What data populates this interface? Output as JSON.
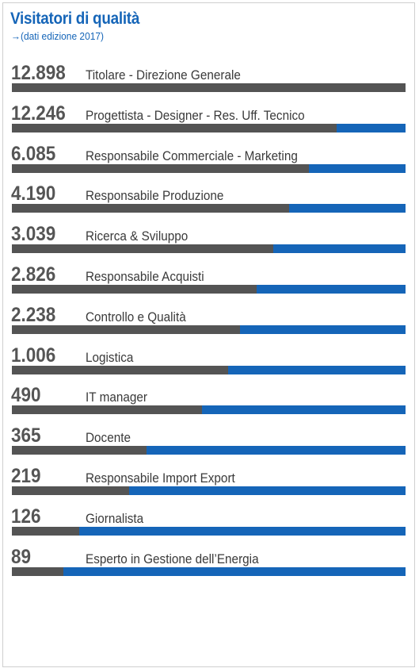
{
  "header": {
    "title": "Visitatori di qualità",
    "subtitle": "→(dati edizione 2017)"
  },
  "colors": {
    "title": "#1565b8",
    "track": "#1565b8",
    "fill": "#545454",
    "value_text": "#555555",
    "label_text": "#3a3a3a"
  },
  "chart_data": {
    "type": "bar",
    "title": "Visitatori di qualità",
    "subtitle": "→(dati edizione 2017)",
    "orientation": "horizontal",
    "categories": [
      "Titolare - Direzione Generale",
      "Progettista - Designer - Res. Uff. Tecnico",
      "Responsabile Commerciale - Marketing",
      "Responsabile Produzione",
      "Ricerca & Sviluppo",
      "Responsabile Acquisti",
      "Controllo e Qualità",
      "Logistica",
      "IT manager",
      "Docente",
      "Responsabile Import Export",
      "Giornalista",
      "Esperto in Gestione dell’Energia"
    ],
    "values": [
      12898,
      12246,
      6085,
      4190,
      3039,
      2826,
      2238,
      1006,
      490,
      365,
      219,
      126,
      89
    ],
    "value_labels": [
      "12.898",
      "12.246",
      "6.085",
      "4.190",
      "3.039",
      "2.826",
      "2.238",
      "1.006",
      "490",
      "365",
      "219",
      "126",
      "89"
    ],
    "fill_fractions": [
      1.0,
      0.825,
      0.755,
      0.705,
      0.663,
      0.621,
      0.579,
      0.549,
      0.482,
      0.343,
      0.297,
      0.172,
      0.131
    ]
  }
}
